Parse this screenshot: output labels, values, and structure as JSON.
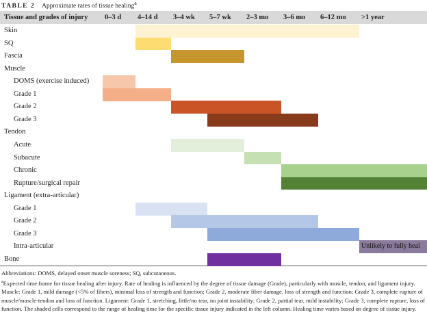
{
  "title": {
    "label": "TABLE 2",
    "text": "Approximate rates of tissue healing",
    "marker": "a"
  },
  "table": {
    "columns": [
      "Tissue and grades of injury",
      "0–3 d",
      "4–14 d",
      "3–4 wk",
      "5–7 wk",
      "2–3 mo",
      "3–6 mo",
      "6–12 mo",
      ">1 year"
    ],
    "rows": [
      {
        "label": "Skin",
        "level": 0,
        "span": [
          1,
          7
        ],
        "color": "#fdf3d0"
      },
      {
        "label": "SQ",
        "level": 0,
        "span": [
          1,
          2
        ],
        "color": "#fddc72"
      },
      {
        "label": "Fascia",
        "level": 0,
        "span": [
          2,
          4
        ],
        "color": "#c6952e"
      },
      {
        "label": "Muscle",
        "level": 0
      },
      {
        "label": "DOMS (exercise induced)",
        "level": 1,
        "span": [
          0,
          1
        ],
        "color": "#f6c7aa"
      },
      {
        "label": "Grade 1",
        "level": 1,
        "span": [
          0,
          2
        ],
        "color": "#f4ae88"
      },
      {
        "label": "Grade 2",
        "level": 1,
        "span": [
          2,
          5
        ],
        "color": "#cb5426"
      },
      {
        "label": "Grade 3",
        "level": 1,
        "span": [
          3,
          6
        ],
        "color": "#873b1b"
      },
      {
        "label": "Tendon",
        "level": 0
      },
      {
        "label": "Acute",
        "level": 1,
        "span": [
          2,
          4
        ],
        "color": "#e3eedb"
      },
      {
        "label": "Subacute",
        "level": 1,
        "span": [
          4,
          5
        ],
        "color": "#c5e0b3"
      },
      {
        "label": "Chronic",
        "level": 1,
        "span": [
          5,
          8
        ],
        "color": "#a9d18e"
      },
      {
        "label": "Rupture/surgical repair",
        "level": 1,
        "span": [
          5,
          8
        ],
        "color": "#548235"
      },
      {
        "label": "Ligament (extra-articular)",
        "level": 0
      },
      {
        "label": "Grade 1",
        "level": 1,
        "span": [
          1,
          3
        ],
        "color": "#d9e2f3"
      },
      {
        "label": "Grade 2",
        "level": 1,
        "span": [
          2,
          6
        ],
        "color": "#b4c7e7"
      },
      {
        "label": "Grade 3",
        "level": 1,
        "span": [
          3,
          7
        ],
        "color": "#8eaadb"
      },
      {
        "label": "Intra-articular",
        "level": 1,
        "span": [
          7,
          8
        ],
        "color": "#8a7a9b",
        "note": "Unlikely to fully heal"
      },
      {
        "label": "Bone",
        "level": 0,
        "span": [
          3,
          5
        ],
        "color": "#7030a0"
      }
    ]
  },
  "footnotes": {
    "abbreviations": "Abbreviations: DOMS, delayed onset muscle soreness; SQ, subcutaneous.",
    "marker": "a",
    "text": "Expected time frame for tissue healing after injury. Rate of healing is influenced by the degree of tissue damage (Grade), particularly with muscle, tendon, and ligament injury. Muscle: Grade 1, mild damage (<5% of fibers), minimal loss of strength and function; Grade 2, moderate fiber damage, loss of strength and function; Grade 3, complete rupture of muscle/muscle-tendon and loss of function. Ligament: Grade 1, stretching, little/no tear, no joint instability; Grade 2, partial tear, mild instability; Grade 3, complete rupture, loss of function. The shaded cells correspond to the range of healing time for the specific tissue injury indicated in the left column. Healing time varies based on degree of tissue injury."
  }
}
